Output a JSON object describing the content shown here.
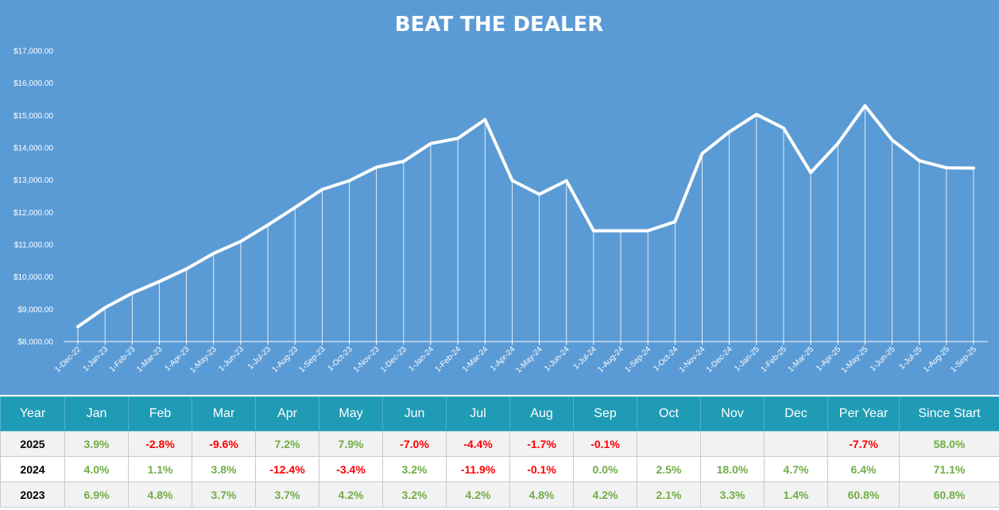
{
  "colors": {
    "chart_background": "#5b9bd5",
    "line": "#ffffff",
    "header_background": "#1f9bb5",
    "positive": "#70ad47",
    "negative": "#ff0000"
  },
  "chart_data": {
    "type": "line",
    "title": "BEAT THE DEALER",
    "xlabel": "",
    "ylabel": "",
    "ylim": [
      8000,
      17000
    ],
    "yticks": [
      8000,
      9000,
      10000,
      11000,
      12000,
      13000,
      14000,
      15000,
      16000,
      17000
    ],
    "ytick_labels": [
      "$8,000.00",
      "$9,000.00",
      "$10,000.00",
      "$11,000.00",
      "$12,000.00",
      "$13,000.00",
      "$14,000.00",
      "$15,000.00",
      "$16,000.00",
      "$17,000.00"
    ],
    "grid": false,
    "drop_lines": true,
    "legend": "none",
    "categories": [
      "1-Dec-22",
      "1-Jan-23",
      "1-Feb-23",
      "1-Mar-23",
      "1-Apr-23",
      "1-May-23",
      "1-Jun-23",
      "1-Jul-23",
      "1-Aug-23",
      "1-Sep-23",
      "1-Oct-23",
      "1-Nov-23",
      "1-Dec-23",
      "1-Jan-24",
      "1-Feb-24",
      "1-Mar-24",
      "1-Apr-24",
      "1-May-24",
      "1-Jun-24",
      "1-Jul-24",
      "1-Aug-24",
      "1-Sep-24",
      "1-Oct-24",
      "1-Nov-24",
      "1-Dec-24",
      "1-Jan-25",
      "1-Feb-25",
      "1-Mar-25",
      "1-Apr-25",
      "1-May-25",
      "1-Jun-25",
      "1-Jul-25",
      "1-Aug-25",
      "1-Sep-25"
    ],
    "values": [
      8460,
      9050,
      9500,
      9860,
      10250,
      10730,
      11100,
      11610,
      12150,
      12710,
      12980,
      13400,
      13580,
      14130,
      14290,
      14870,
      12990,
      12560,
      12980,
      11430,
      11430,
      11430,
      11710,
      13820,
      14490,
      15030,
      14610,
      13230,
      14130,
      15300,
      14240,
      13600,
      13380,
      13370
    ]
  },
  "table": {
    "headers": [
      "Year",
      "Jan",
      "Feb",
      "Mar",
      "Apr",
      "May",
      "Jun",
      "Jul",
      "Aug",
      "Sep",
      "Oct",
      "Nov",
      "Dec",
      "Per Year",
      "Since Start"
    ],
    "rows": [
      {
        "year": "2025",
        "cells": [
          "3.9%",
          "-2.8%",
          "-9.6%",
          "7.2%",
          "7.9%",
          "-7.0%",
          "-4.4%",
          "-1.7%",
          "-0.1%",
          "",
          "",
          "",
          "-7.7%",
          "58.0%"
        ]
      },
      {
        "year": "2024",
        "cells": [
          "4.0%",
          "1.1%",
          "3.8%",
          "-12.4%",
          "-3.4%",
          "3.2%",
          "-11.9%",
          "-0.1%",
          "0.0%",
          "2.5%",
          "18.0%",
          "4.7%",
          "6.4%",
          "71.1%"
        ]
      },
      {
        "year": "2023",
        "cells": [
          "6.9%",
          "4.8%",
          "3.7%",
          "3.7%",
          "4.2%",
          "3.2%",
          "4.2%",
          "4.8%",
          "4.2%",
          "2.1%",
          "3.3%",
          "1.4%",
          "60.8%",
          "60.8%"
        ]
      }
    ]
  }
}
